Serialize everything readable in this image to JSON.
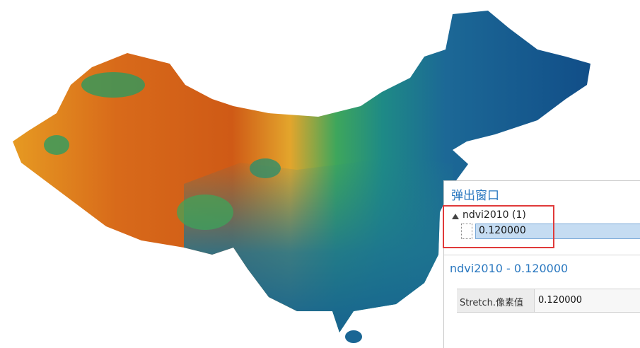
{
  "popup": {
    "title": "弹出窗口",
    "tree": {
      "layer": "ndvi2010 (1)",
      "value": "0.120000"
    },
    "feature_title": "ndvi2010 - 0.120000",
    "attributes": [
      {
        "field": "Stretch.像素值",
        "value": "0.120000"
      }
    ]
  }
}
